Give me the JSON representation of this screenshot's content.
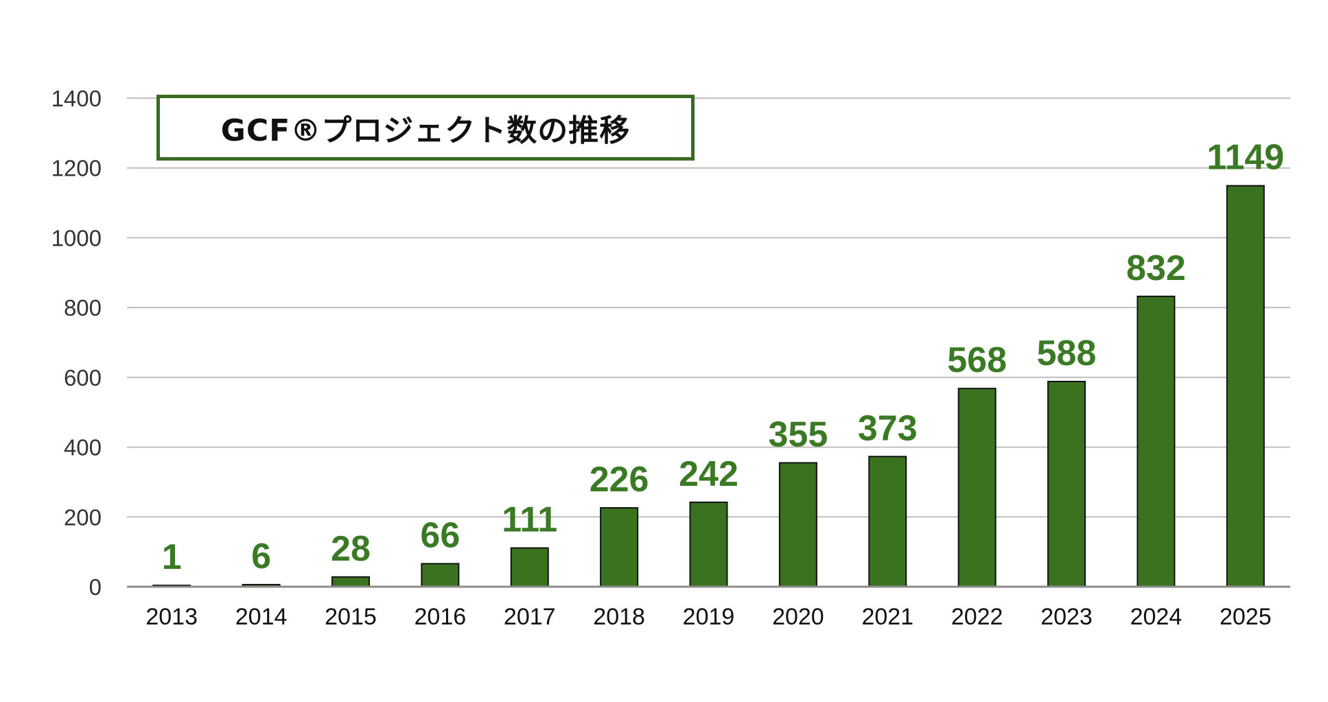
{
  "chart_data": {
    "type": "bar",
    "title": "GCF®プロジェクト数の推移",
    "categories": [
      "2013",
      "2014",
      "2015",
      "2016",
      "2017",
      "2018",
      "2019",
      "2020",
      "2021",
      "2022",
      "2023",
      "2024",
      "2025"
    ],
    "values": [
      1,
      6,
      28,
      66,
      111,
      226,
      242,
      355,
      373,
      568,
      588,
      832,
      1149
    ],
    "ylim": [
      0,
      1400
    ],
    "yticks": [
      "0",
      "200",
      "400",
      "600",
      "800",
      "1000",
      "1200",
      "1400"
    ],
    "grid": true,
    "data_labels": true
  },
  "colors": {
    "bar": "#3a7220",
    "label": "#3b7a24",
    "grid": "#bfbfbf",
    "title_border": "#3b6a25"
  }
}
